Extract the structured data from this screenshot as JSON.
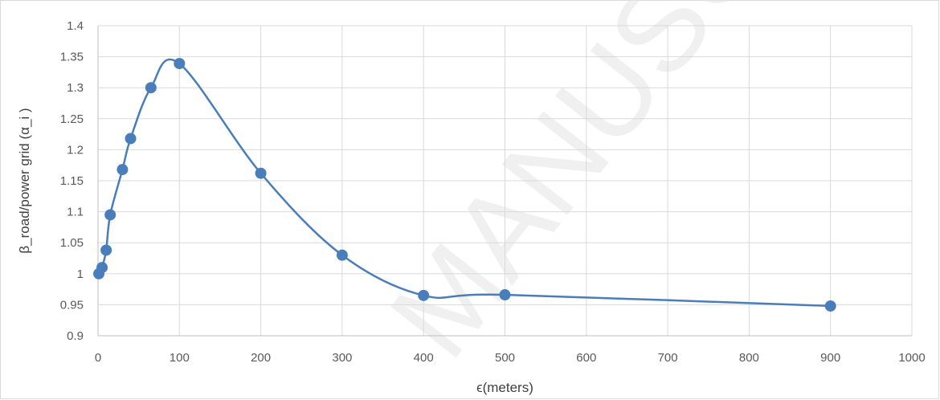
{
  "chart_data": {
    "type": "line",
    "xlabel": "ϵ(meters)",
    "ylabel": "β_road/power grid (α_i )",
    "xlim": [
      0,
      1000
    ],
    "ylim": [
      0.9,
      1.4
    ],
    "x_ticks": [
      0,
      100,
      200,
      300,
      400,
      500,
      600,
      700,
      800,
      900,
      1000
    ],
    "y_ticks": [
      0.9,
      0.95,
      1,
      1.05,
      1.1,
      1.15,
      1.2,
      1.25,
      1.3,
      1.35,
      1.4
    ],
    "grid": true,
    "smooth": true,
    "series_color": "#4a7ebb",
    "series": [
      {
        "x": [
          1,
          5,
          10,
          15,
          30,
          40,
          65,
          100,
          200,
          300,
          400,
          500,
          900
        ],
        "values": [
          1.0,
          1.01,
          1.038,
          1.095,
          1.168,
          1.218,
          1.3,
          1.339,
          1.162,
          1.03,
          0.965,
          0.966,
          0.948
        ]
      }
    ]
  },
  "watermark": "MANUSC"
}
